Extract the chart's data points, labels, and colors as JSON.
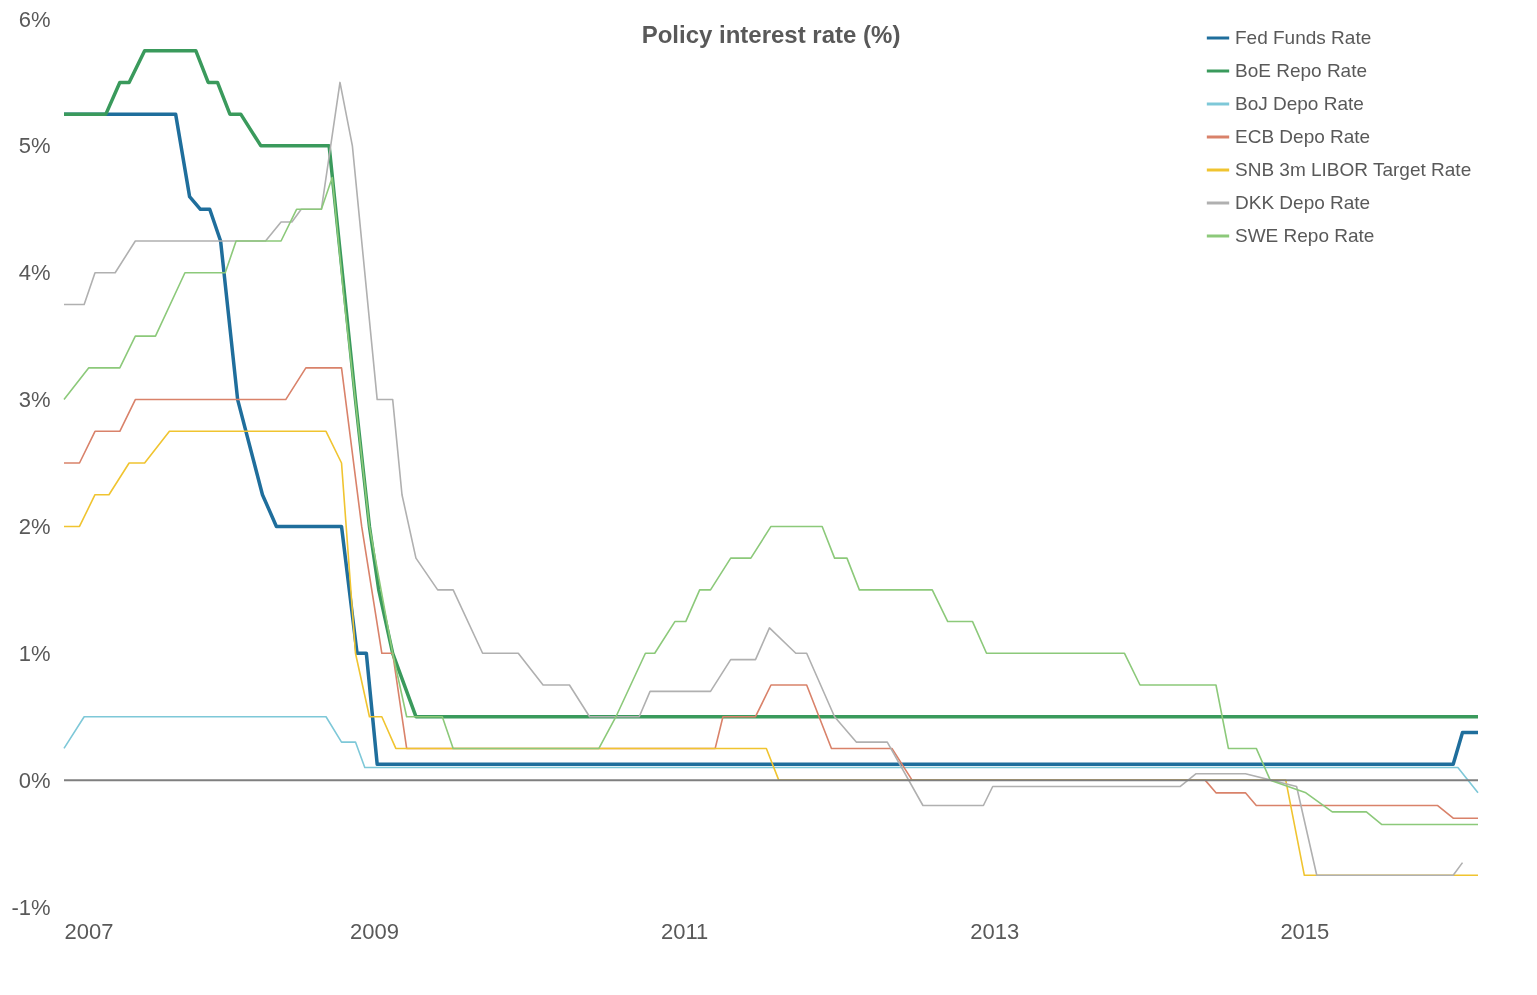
{
  "chart_data": {
    "type": "line",
    "title": "Policy interest rate (%)",
    "xlim": [
      2007,
      2016.12
    ],
    "xticks": [
      2007,
      2009,
      2011,
      2013,
      2015
    ],
    "ylim": [
      -1,
      6
    ],
    "yticks": [
      {
        "value": -1,
        "label": "-1%"
      },
      {
        "value": 0,
        "label": "0%"
      },
      {
        "value": 1,
        "label": "1%"
      },
      {
        "value": 2,
        "label": "2%"
      },
      {
        "value": 3,
        "label": "3%"
      },
      {
        "value": 4,
        "label": "4%"
      },
      {
        "value": 5,
        "label": "5%"
      },
      {
        "value": 6,
        "label": "6%"
      }
    ],
    "grid": false,
    "legend": "top right",
    "marker": "none",
    "line_style": "solid",
    "ref_lines": [
      {
        "axis": "y",
        "value": 0,
        "label": null,
        "color": "#7f7f7f"
      }
    ],
    "series": [
      {
        "name": "Fed Funds Rate",
        "color": "#1f6e9c",
        "x": [
          2007,
          2007.72,
          2007.81,
          2007.88,
          2007.94,
          2008.01,
          2008.12,
          2008.28,
          2008.37,
          2008.79,
          2008.89,
          2008.95,
          2009.02,
          2015.96,
          2016.02,
          2016.12
        ],
        "values": [
          5.25,
          5.25,
          4.6,
          4.5,
          4.5,
          4.25,
          3.0,
          2.25,
          2.0,
          2.0,
          1.0,
          1.0,
          0.125,
          0.125,
          0.375,
          0.375
        ]
      },
      {
        "name": "BoE Repo Rate",
        "color": "#3a9a5c",
        "x": [
          2007,
          2007.27,
          2007.36,
          2007.42,
          2007.52,
          2007.85,
          2007.93,
          2007.99,
          2008.07,
          2008.14,
          2008.27,
          2008.71,
          2008.88,
          2008.97,
          2009.03,
          2009.12,
          2009.27,
          2016.12
        ],
        "values": [
          5.25,
          5.25,
          5.5,
          5.5,
          5.75,
          5.75,
          5.5,
          5.5,
          5.25,
          5.25,
          5.0,
          5.0,
          3.0,
          2.0,
          1.5,
          1.0,
          0.5,
          0.5
        ]
      },
      {
        "name": "BoJ Depo Rate",
        "color": "#7ec8d8",
        "x": [
          2007,
          2007.13,
          2008.69,
          2008.79,
          2008.88,
          2008.94,
          2015.99,
          2016.12
        ],
        "values": [
          0.25,
          0.5,
          0.5,
          0.3,
          0.3,
          0.1,
          0.1,
          -0.1
        ]
      },
      {
        "name": "ECB Depo Rate",
        "color": "#d9826a",
        "x": [
          2007,
          2007.1,
          2007.2,
          2007.36,
          2007.46,
          2008.43,
          2008.56,
          2008.79,
          2008.92,
          2009.05,
          2009.12,
          2009.21,
          2011.2,
          2011.25,
          2011.46,
          2011.56,
          2011.79,
          2011.95,
          2012.34,
          2012.47,
          2014.36,
          2014.43,
          2014.62,
          2014.69,
          2015.86,
          2015.96,
          2016.12
        ],
        "values": [
          2.5,
          2.5,
          2.75,
          2.75,
          3.0,
          3.0,
          3.25,
          3.25,
          2.0,
          1.0,
          1.0,
          0.25,
          0.25,
          0.5,
          0.5,
          0.75,
          0.75,
          0.25,
          0.25,
          0.0,
          0.0,
          -0.1,
          -0.1,
          -0.2,
          -0.2,
          -0.3,
          -0.3
        ]
      },
      {
        "name": "SNB 3m LIBOR Target Rate",
        "color": "#f0c430",
        "x": [
          2007,
          2007.1,
          2007.2,
          2007.29,
          2007.42,
          2007.52,
          2007.68,
          2008.69,
          2008.79,
          2008.88,
          2008.97,
          2009.05,
          2009.14,
          2011.53,
          2011.61,
          2014.88,
          2015.0,
          2016.12
        ],
        "values": [
          2.0,
          2.0,
          2.25,
          2.25,
          2.5,
          2.5,
          2.75,
          2.75,
          2.5,
          1.0,
          0.5,
          0.5,
          0.25,
          0.25,
          0.0,
          0.0,
          -0.75,
          -0.75
        ]
      },
      {
        "name": "DKK Depo Rate",
        "color": "#b0b0b0",
        "x": [
          2007,
          2007.13,
          2007.2,
          2007.33,
          2007.46,
          2008.3,
          2008.4,
          2008.47,
          2008.53,
          2008.66,
          2008.78,
          2008.86,
          2009.02,
          2009.12,
          2009.18,
          2009.27,
          2009.41,
          2009.51,
          2009.7,
          2009.93,
          2010.09,
          2010.26,
          2010.39,
          2010.71,
          2010.78,
          2011.17,
          2011.3,
          2011.46,
          2011.55,
          2011.72,
          2011.79,
          2011.97,
          2012.11,
          2012.31,
          2012.54,
          2012.93,
          2012.99,
          2014.2,
          2014.3,
          2014.62,
          2014.95,
          2015.08,
          2015.96,
          2016.02
        ],
        "values": [
          3.75,
          3.75,
          4.0,
          4.0,
          4.25,
          4.25,
          4.4,
          4.4,
          4.5,
          4.5,
          5.5,
          5.0,
          3.0,
          3.0,
          2.25,
          1.75,
          1.5,
          1.5,
          1.0,
          1.0,
          0.75,
          0.75,
          0.5,
          0.5,
          0.7,
          0.7,
          0.95,
          0.95,
          1.2,
          1.0,
          1.0,
          0.5,
          0.3,
          0.3,
          -0.2,
          -0.2,
          -0.05,
          -0.05,
          0.05,
          0.05,
          -0.05,
          -0.75,
          -0.75,
          -0.65
        ]
      },
      {
        "name": "SWE Repo Rate",
        "color": "#8cc97a",
        "x": [
          2007,
          2007.16,
          2007.36,
          2007.46,
          2007.59,
          2007.78,
          2008.04,
          2008.11,
          2008.4,
          2008.5,
          2008.66,
          2008.73,
          2008.81,
          2008.97,
          2009.12,
          2009.21,
          2009.44,
          2009.51,
          2010.45,
          2010.56,
          2010.75,
          2010.81,
          2010.94,
          2011.01,
          2011.1,
          2011.17,
          2011.3,
          2011.43,
          2011.56,
          2011.89,
          2011.97,
          2012.05,
          2012.13,
          2012.6,
          2012.7,
          2012.86,
          2012.95,
          2013.84,
          2013.94,
          2014.43,
          2014.51,
          2014.69,
          2014.78,
          2015.01,
          2015.18,
          2015.4,
          2015.5,
          2016.12
        ],
        "values": [
          3.0,
          3.25,
          3.25,
          3.5,
          3.5,
          4.0,
          4.0,
          4.25,
          4.25,
          4.5,
          4.5,
          4.75,
          3.75,
          2.0,
          1.0,
          0.5,
          0.5,
          0.25,
          0.25,
          0.5,
          1.0,
          1.0,
          1.25,
          1.25,
          1.5,
          1.5,
          1.75,
          1.75,
          2.0,
          2.0,
          1.75,
          1.75,
          1.5,
          1.5,
          1.25,
          1.25,
          1.0,
          1.0,
          0.75,
          0.75,
          0.25,
          0.25,
          0.0,
          -0.1,
          -0.25,
          -0.25,
          -0.35,
          -0.35
        ]
      }
    ]
  }
}
